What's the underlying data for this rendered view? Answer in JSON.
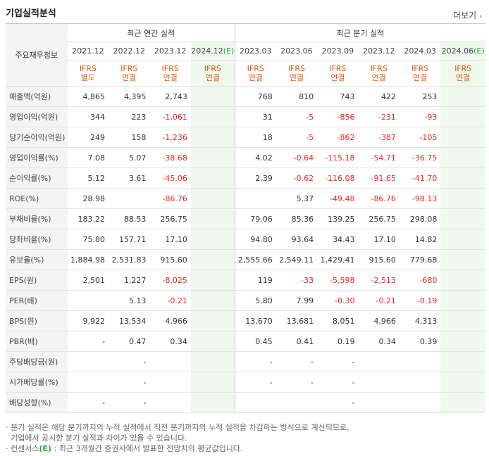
{
  "header": {
    "title": "기업실적분석",
    "more_label": "더보기",
    "more_arrow": "›"
  },
  "table": {
    "row_header": "주요재무정보",
    "annual_group": "최근 연간 실적",
    "quarter_group": "최근 분기 실적",
    "annual_periods": [
      "2021.12",
      "2022.12",
      "2023.12",
      "2024.12"
    ],
    "quarter_periods": [
      "2023.03",
      "2023.06",
      "2023.09",
      "2023.12",
      "2024.03",
      "2024.06"
    ],
    "estimate_mark": "(E)",
    "annual_ifrs": [
      [
        "IFRS",
        "별도"
      ],
      [
        "IFRS",
        "연결"
      ],
      [
        "IFRS",
        "연결"
      ],
      [
        "IFRS",
        "연결"
      ]
    ],
    "quarter_ifrs": [
      [
        "IFRS",
        "연결"
      ],
      [
        "IFRS",
        "연결"
      ],
      [
        "IFRS",
        "연결"
      ],
      [
        "IFRS",
        "연결"
      ],
      [
        "IFRS",
        "연결"
      ],
      [
        "IFRS",
        "연결"
      ]
    ],
    "rows": [
      {
        "label": "매출액(억원)",
        "annual": [
          "4,865",
          "4,395",
          "2,743",
          ""
        ],
        "quarter": [
          "768",
          "810",
          "743",
          "422",
          "253",
          ""
        ]
      },
      {
        "label": "영업이익(억원)",
        "annual": [
          "344",
          "223",
          "-1,061",
          ""
        ],
        "quarter": [
          "31",
          "-5",
          "-856",
          "-231",
          "-93",
          ""
        ]
      },
      {
        "label": "당기순이익(억원)",
        "annual": [
          "249",
          "158",
          "-1,236",
          ""
        ],
        "quarter": [
          "18",
          "-5",
          "-862",
          "-387",
          "-105",
          ""
        ]
      },
      {
        "label": "영업이익률(%)",
        "annual": [
          "7.08",
          "5.07",
          "-38.68",
          ""
        ],
        "quarter": [
          "4.02",
          "-0.64",
          "-115.18",
          "-54.71",
          "-36.75",
          ""
        ]
      },
      {
        "label": "순이익률(%)",
        "annual": [
          "5.12",
          "3.61",
          "-45.06",
          ""
        ],
        "quarter": [
          "2.39",
          "-0.62",
          "-116.08",
          "-91.65",
          "-41.70",
          ""
        ]
      },
      {
        "label": "ROE(%)",
        "annual": [
          "28.98",
          "",
          "-86.76",
          ""
        ],
        "quarter": [
          "",
          "5.37",
          "-49.48",
          "-86.76",
          "-98.13",
          ""
        ]
      },
      {
        "label": "부채비율(%)",
        "annual": [
          "183.22",
          "88.53",
          "256.75",
          ""
        ],
        "quarter": [
          "79.06",
          "85.36",
          "139.25",
          "256.75",
          "298.08",
          ""
        ]
      },
      {
        "label": "당좌비율(%)",
        "annual": [
          "75.80",
          "157.71",
          "17.10",
          ""
        ],
        "quarter": [
          "94.80",
          "93.64",
          "34.43",
          "17.10",
          "14.82",
          ""
        ]
      },
      {
        "label": "유보율(%)",
        "annual": [
          "1,884.98",
          "2,531.83",
          "915.60",
          ""
        ],
        "quarter": [
          "2,555.66",
          "2,549.11",
          "1,429.41",
          "915.60",
          "779.68",
          ""
        ]
      },
      {
        "label": "EPS(원)",
        "annual": [
          "2,501",
          "1,227",
          "-8,025",
          ""
        ],
        "quarter": [
          "119",
          "-33",
          "-5,598",
          "-2,513",
          "-680",
          ""
        ]
      },
      {
        "label": "PER(배)",
        "annual": [
          "",
          "5.13",
          "-0.21",
          ""
        ],
        "quarter": [
          "5.80",
          "7.99",
          "-0.30",
          "-0.21",
          "-0.19",
          ""
        ]
      },
      {
        "label": "BPS(원)",
        "annual": [
          "9,922",
          "13,534",
          "4,966",
          ""
        ],
        "quarter": [
          "13,670",
          "13,681",
          "8,051",
          "4,966",
          "4,313",
          ""
        ]
      },
      {
        "label": "PBR(배)",
        "annual": [
          "-",
          "0.47",
          "0.34",
          ""
        ],
        "quarter": [
          "0.45",
          "0.41",
          "0.19",
          "0.34",
          "0.39",
          ""
        ]
      },
      {
        "label": "주당배당금(원)",
        "annual": [
          "",
          "-",
          "",
          ""
        ],
        "quarter": [
          "-",
          "-",
          "-",
          "",
          "",
          " "
        ]
      },
      {
        "label": "시가배당률(%)",
        "annual": [
          "",
          "-",
          "",
          ""
        ],
        "quarter": [
          "-",
          "-",
          "-",
          "",
          "",
          " "
        ]
      },
      {
        "label": "배당성향(%)",
        "annual": [
          "-",
          "-",
          "",
          ""
        ],
        "quarter": [
          "",
          "",
          "-",
          "",
          "",
          " "
        ]
      }
    ],
    "group_starts": [
      0,
      3,
      6,
      9,
      13
    ]
  },
  "notes": {
    "line1": "· 분기 실적은 해당 분기까지의 누적 실적에서 직전 분기까지의 누적 실적을 차감하는 방식으로 계산되므로,",
    "line2": "  기업에서 공시한 분기 실적과 차이가 있을 수 있습니다.",
    "line3_prefix": "· 컨센서스",
    "line3_mark": "(E)",
    "line3_suffix": " : 최근 3개월간 증권사에서 발표한 전망치의 평균값입니다."
  },
  "colors": {
    "negative": "#e22828",
    "ifrs": "#e0570c",
    "estimate_bg": "#eef8ec",
    "estimate_mark": "#28a745",
    "label_bg": "#f4f4f4"
  }
}
